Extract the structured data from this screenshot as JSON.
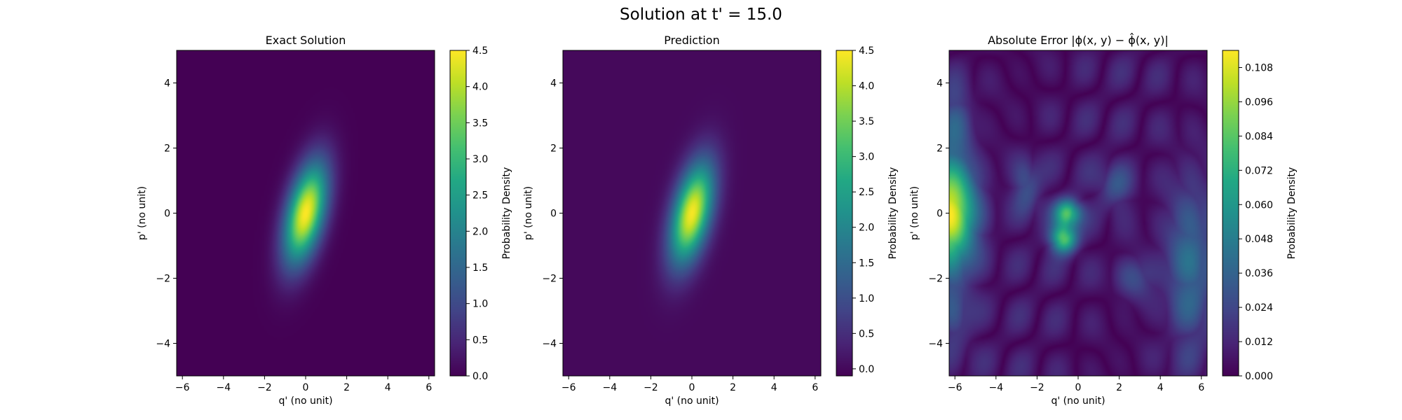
{
  "suptitle": "Solution at t' = 15.0",
  "chart_data": [
    {
      "type": "heatmap",
      "title": "Exact Solution",
      "xlabel": "q' (no unit)",
      "ylabel": "p' (no unit)",
      "xlim": [
        -6.28,
        6.28
      ],
      "ylim": [
        -5,
        5
      ],
      "xticks": [
        "−6",
        "−4",
        "−2",
        "0",
        "2",
        "4",
        "6"
      ],
      "xtick_values": [
        -6,
        -4,
        -2,
        0,
        2,
        4,
        6
      ],
      "yticks": [
        "−4",
        "−2",
        "0",
        "2",
        "4"
      ],
      "ytick_values": [
        -4,
        -2,
        0,
        2,
        4
      ],
      "colormap": "viridis",
      "colorbar": {
        "label": "Probability Density",
        "range": [
          0,
          4.5
        ],
        "ticks": [
          "0.0",
          "0.5",
          "1.0",
          "1.5",
          "2.0",
          "2.5",
          "3.0",
          "3.5",
          "4.0",
          "4.5"
        ],
        "tick_values": [
          0,
          0.5,
          1.0,
          1.5,
          2.0,
          2.5,
          3.0,
          3.5,
          4.0,
          4.5
        ]
      },
      "features": [
        {
          "kind": "gaussian",
          "center": [
            0,
            0
          ],
          "sigma_major": 1.15,
          "sigma_minor": 0.6,
          "angle_deg": 65,
          "peak": 4.5
        }
      ]
    },
    {
      "type": "heatmap",
      "title": "Prediction",
      "xlabel": "q' (no unit)",
      "ylabel": "p' (no unit)",
      "xlim": [
        -6.28,
        6.28
      ],
      "ylim": [
        -5,
        5
      ],
      "xticks": [
        "−6",
        "−4",
        "−2",
        "0",
        "2",
        "4",
        "6"
      ],
      "xtick_values": [
        -6,
        -4,
        -2,
        0,
        2,
        4,
        6
      ],
      "yticks": [
        "−4",
        "−2",
        "0",
        "2",
        "4"
      ],
      "ytick_values": [
        -4,
        -2,
        0,
        2,
        4
      ],
      "colormap": "viridis",
      "colorbar": {
        "label": "Probability Density",
        "range": [
          -0.1,
          4.5
        ],
        "ticks": [
          "0.0",
          "0.5",
          "1.0",
          "1.5",
          "2.0",
          "2.5",
          "3.0",
          "3.5",
          "4.0",
          "4.5"
        ],
        "tick_values": [
          0,
          0.5,
          1.0,
          1.5,
          2.0,
          2.5,
          3.0,
          3.5,
          4.0,
          4.5
        ]
      },
      "features": [
        {
          "kind": "gaussian",
          "center": [
            0,
            0
          ],
          "sigma_major": 1.15,
          "sigma_minor": 0.6,
          "angle_deg": 65,
          "peak": 4.45
        }
      ]
    },
    {
      "type": "heatmap",
      "title": "Absolute Error |ϕ(x, y) − ϕ̂(x, y)|",
      "xlabel": "q' (no unit)",
      "ylabel": "p' (no unit)",
      "xlim": [
        -6.28,
        6.28
      ],
      "ylim": [
        -5,
        5
      ],
      "xticks": [
        "−6",
        "−4",
        "−2",
        "0",
        "2",
        "4",
        "6"
      ],
      "xtick_values": [
        -6,
        -4,
        -2,
        0,
        2,
        4,
        6
      ],
      "yticks": [
        "−4",
        "−2",
        "0",
        "2",
        "4"
      ],
      "ytick_values": [
        -4,
        -2,
        0,
        2,
        4
      ],
      "colormap": "viridis",
      "colorbar": {
        "label": "Probability Density",
        "range": [
          0,
          0.114
        ],
        "ticks": [
          "0.000",
          "0.012",
          "0.024",
          "0.036",
          "0.048",
          "0.060",
          "0.072",
          "0.084",
          "0.096",
          "0.108"
        ],
        "tick_values": [
          0,
          0.012,
          0.024,
          0.036,
          0.048,
          0.06,
          0.072,
          0.084,
          0.096,
          0.108
        ]
      },
      "features": [
        {
          "kind": "blob",
          "center": [
            -6.28,
            0
          ],
          "sigma": [
            0.9,
            1.2
          ],
          "peak": 0.11
        },
        {
          "kind": "blob",
          "center": [
            -0.5,
            0.0
          ],
          "sigma": [
            0.45,
            0.3
          ],
          "peak": 0.075
        },
        {
          "kind": "blob",
          "center": [
            -0.7,
            -0.8
          ],
          "sigma": [
            0.45,
            0.3
          ],
          "peak": 0.08
        },
        {
          "kind": "blob",
          "center": [
            5.5,
            -1.5
          ],
          "sigma": [
            0.9,
            1.8
          ],
          "peak": 0.035
        },
        {
          "kind": "blob",
          "center": [
            -6.0,
            3.0
          ],
          "sigma": [
            0.6,
            0.7
          ],
          "peak": 0.022
        },
        {
          "kind": "blob",
          "center": [
            -6.0,
            -3.2
          ],
          "sigma": [
            0.6,
            0.8
          ],
          "peak": 0.02
        },
        {
          "kind": "blob",
          "center": [
            -2.5,
            0.8
          ],
          "sigma": [
            0.5,
            0.6
          ],
          "peak": 0.025
        },
        {
          "kind": "blob",
          "center": [
            1.8,
            0.8
          ],
          "sigma": [
            0.6,
            0.5
          ],
          "peak": 0.022
        },
        {
          "kind": "blob",
          "center": [
            2.8,
            -2.0
          ],
          "sigma": [
            0.7,
            0.5
          ],
          "peak": 0.02
        },
        {
          "kind": "ripple",
          "kx": 1.9,
          "ky": 2.1,
          "amplitude": 0.016
        }
      ]
    }
  ]
}
